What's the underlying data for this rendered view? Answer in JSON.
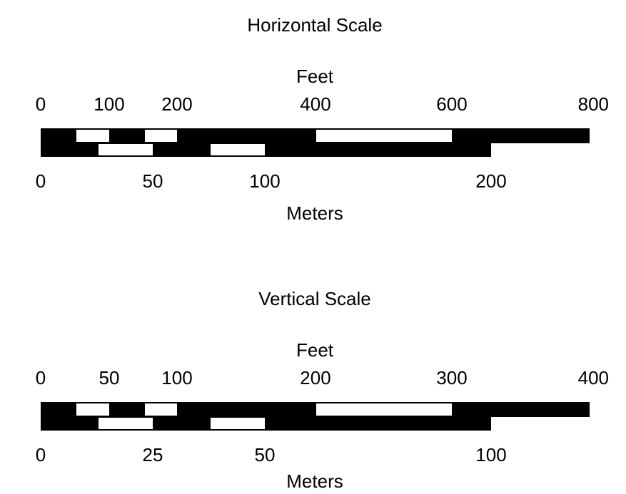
{
  "horizontal": {
    "title": "Horizontal Scale",
    "feet_label": "Feet",
    "meters_label": "Meters",
    "feet_ticks": [
      "0",
      "100",
      "200",
      "400",
      "600",
      "800"
    ],
    "meter_ticks": [
      "0",
      "50",
      "100",
      "200"
    ]
  },
  "vertical": {
    "title": "Vertical Scale",
    "feet_label": "Feet",
    "meters_label": "Meters",
    "feet_ticks": [
      "0",
      "50",
      "100",
      "200",
      "300",
      "400"
    ],
    "meter_ticks": [
      "0",
      "25",
      "50",
      "100"
    ]
  },
  "colors": {
    "bar_fill": "#000000",
    "bar_gap": "#ffffff",
    "text": "#000000"
  }
}
